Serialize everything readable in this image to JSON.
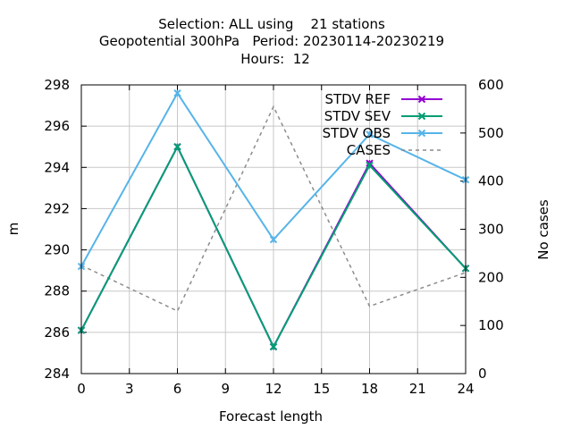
{
  "chart_data": {
    "type": "line",
    "title_lines": [
      "Selection: ALL using    21 stations",
      "Geopotential 300hPa   Period: 20230114-20230219",
      "Hours:  12"
    ],
    "xlabel": "Forecast length",
    "ylabel": "m",
    "y2label": "No cases",
    "xlim": [
      0,
      24
    ],
    "xticks": [
      0,
      3,
      6,
      9,
      12,
      15,
      18,
      21,
      24
    ],
    "ylim": [
      284,
      298
    ],
    "yticks": [
      284,
      286,
      288,
      290,
      292,
      294,
      296,
      298
    ],
    "y2lim": [
      0,
      600
    ],
    "y2ticks": [
      0,
      100,
      200,
      300,
      400,
      500,
      600
    ],
    "grid": true,
    "legend_position": "top-right",
    "x": [
      0,
      6,
      12,
      18,
      24
    ],
    "series": [
      {
        "name": "STDV REF",
        "axis": "y",
        "color": "#9400d3",
        "dash": false,
        "marker": "x",
        "values": [
          286.1,
          295.0,
          285.3,
          294.2,
          289.1
        ]
      },
      {
        "name": "STDV SEV",
        "axis": "y",
        "color": "#009e73",
        "dash": false,
        "marker": "x",
        "values": [
          286.1,
          295.0,
          285.3,
          294.1,
          289.1
        ]
      },
      {
        "name": "STDV OBS",
        "axis": "y",
        "color": "#56b4e9",
        "dash": false,
        "marker": "x",
        "values": [
          289.2,
          297.6,
          290.5,
          295.6,
          293.4
        ]
      },
      {
        "name": "CASES",
        "axis": "y2",
        "color": "#8c8c8c",
        "dash": true,
        "marker": "none",
        "values": [
          225,
          130,
          555,
          140,
          210
        ]
      }
    ]
  }
}
